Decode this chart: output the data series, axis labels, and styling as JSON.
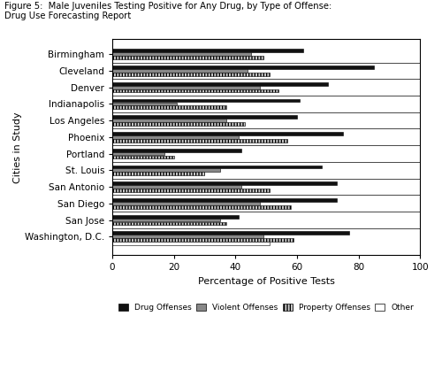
{
  "title_line1": "Figure 5:  Male Juveniles Testing Positive for Any Drug, by Type of Offense:",
  "title_line2": "Drug Use Forecasting Report",
  "cities": [
    "Washington, D.C.",
    "San Jose",
    "San Diego",
    "San Antonio",
    "St. Louis",
    "Portland",
    "Phoenix",
    "Los Angeles",
    "Indianapolis",
    "Denver",
    "Cleveland",
    "Birmingham"
  ],
  "drug_offenses": [
    77,
    41,
    73,
    73,
    68,
    42,
    75,
    60,
    61,
    70,
    85,
    62
  ],
  "violent_offenses": [
    49,
    35,
    48,
    42,
    35,
    17,
    41,
    37,
    21,
    48,
    44,
    45
  ],
  "property_offenses": [
    59,
    37,
    58,
    51,
    30,
    20,
    57,
    43,
    37,
    54,
    51,
    49
  ],
  "other": [
    51,
    0,
    0,
    0,
    0,
    0,
    0,
    0,
    0,
    0,
    0,
    0
  ],
  "xlabel": "Percentage of Positive Tests",
  "ylabel": "Cities in Study",
  "xlim": [
    0,
    100
  ],
  "xticks": [
    0,
    20,
    40,
    60,
    80,
    100
  ],
  "color_drug": "#111111",
  "color_violent": "#888888",
  "color_property": "#cccccc",
  "color_other": "#ffffff",
  "legend_labels": [
    "Drug Offenses",
    "Violent Offenses",
    "Property Offenses",
    "Other"
  ],
  "figsize": [
    5.0,
    4.18
  ],
  "dpi": 100
}
